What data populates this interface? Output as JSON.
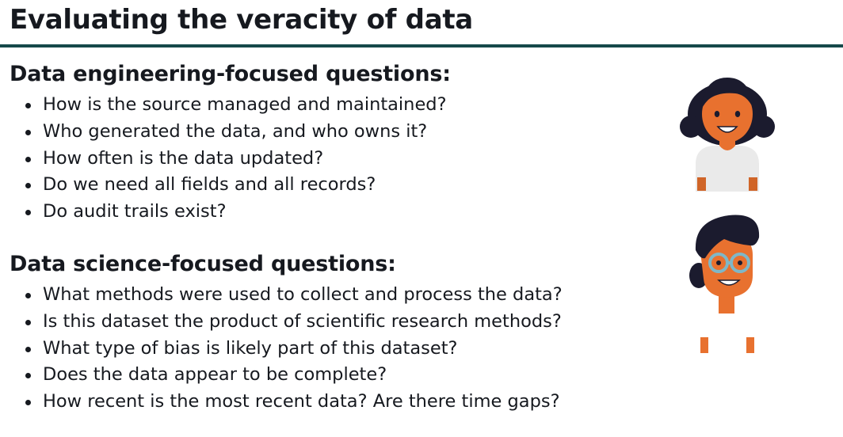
{
  "slide": {
    "title": "Evaluating the veracity of data"
  },
  "sections": [
    {
      "heading": "Data engineering-focused questions:",
      "items": [
        "How is the source managed and maintained?",
        "Who generated the data, and who owns it?",
        "How often is the data updated?",
        "Do we need all fields and all records?",
        "Do audit trails exist?"
      ]
    },
    {
      "heading": "Data science-focused questions:",
      "items": [
        "What methods were used to collect and process the data?",
        "Is this dataset the product of scientific research methods?",
        "What type of bias is likely part of this dataset?",
        "Does the data appear to be complete?",
        "How recent is the most recent data? Are there time gaps?"
      ]
    }
  ],
  "illustrations": {
    "engineer_icon": "woman-avatar-icon",
    "scientist_icon": "man-with-glasses-avatar-icon",
    "colors": {
      "skin": "#e8712f",
      "hair": "#1b1b2e",
      "shirt": "#eaeaea",
      "glasses": "#7fb7c7",
      "rule": "#16494a"
    }
  }
}
